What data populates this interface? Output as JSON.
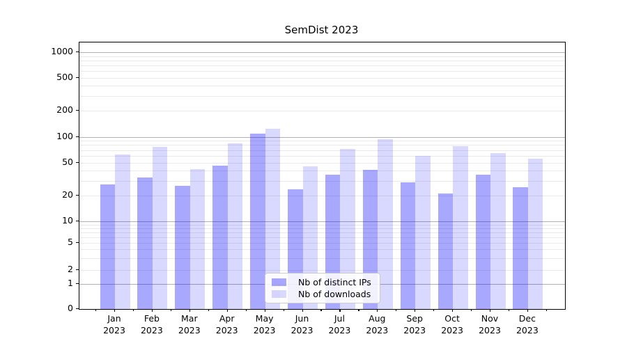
{
  "title": "SemDist 2023",
  "chart_data": {
    "type": "bar",
    "title": "SemDist 2023",
    "categories": [
      "Jan 2023",
      "Feb 2023",
      "Mar 2023",
      "Apr 2023",
      "May 2023",
      "Jun 2023",
      "Jul 2023",
      "Aug 2023",
      "Sep 2023",
      "Oct 2023",
      "Nov 2023",
      "Dec 2023"
    ],
    "series": [
      {
        "name": "Nb of distinct IPs",
        "color": "rgba(0,0,255,0.34)",
        "values": [
          27,
          33,
          26,
          46,
          109,
          24,
          36,
          41,
          29,
          21,
          36,
          25
        ]
      },
      {
        "name": "Nb of downloads",
        "color": "rgba(0,0,255,0.15)",
        "values": [
          62,
          76,
          42,
          84,
          124,
          45,
          72,
          94,
          60,
          78,
          64,
          55
        ]
      }
    ],
    "yscale": "symlog",
    "yticks": [
      0,
      1,
      2,
      5,
      10,
      20,
      50,
      100,
      200,
      500,
      1000
    ],
    "ylim": [
      0,
      1300
    ],
    "grid": true,
    "legend_position": "lower center",
    "grid_major_color": "#b0b0b0",
    "grid_minor_color": "#e9e9e9"
  }
}
